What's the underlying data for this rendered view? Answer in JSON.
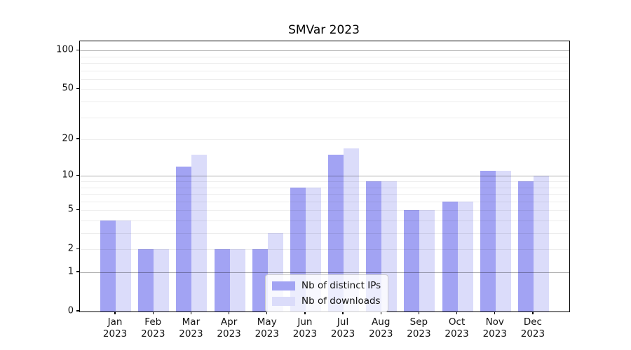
{
  "title": "SMVar 2023",
  "legend": {
    "items": [
      {
        "label": "Nb of distinct IPs",
        "color": "#a2a3f3"
      },
      {
        "label": "Nb of downloads",
        "color": "#dbdcfa"
      }
    ]
  },
  "chart_data": {
    "type": "bar",
    "title": "SMVar 2023",
    "categories": [
      "Jan 2023",
      "Feb 2023",
      "Mar 2023",
      "Apr 2023",
      "May 2023",
      "Jun 2023",
      "Jul 2023",
      "Aug 2023",
      "Sep 2023",
      "Oct 2023",
      "Nov 2023",
      "Dec 2023"
    ],
    "series": [
      {
        "name": "Nb of distinct IPs",
        "color": "#a2a3f3",
        "values": [
          4,
          2,
          12,
          2,
          2,
          8,
          15,
          9,
          5,
          6,
          11,
          9
        ]
      },
      {
        "name": "Nb of downloads",
        "color": "#dbdcfa",
        "values": [
          4,
          2,
          15,
          2,
          3,
          8,
          17,
          9,
          5,
          6,
          11,
          10
        ]
      }
    ],
    "xlabel": "",
    "ylabel": "",
    "yscale": "log1p",
    "ylim": [
      0,
      117
    ],
    "y_tick_values": [
      0,
      1,
      2,
      5,
      10,
      20,
      50,
      100
    ],
    "y_major_gridlines": [
      1,
      10,
      100
    ],
    "y_minor_gridlines": [
      2,
      3,
      4,
      5,
      6,
      7,
      8,
      9,
      20,
      30,
      40,
      50,
      60,
      70,
      80,
      90
    ],
    "grid": true,
    "grid_above_bars": true,
    "legend_position": "lower center",
    "colors": {
      "major_grid": "rgba(0,0,0,0.32)",
      "minor_grid": "rgba(0,0,0,0.07)",
      "axis": "#000000",
      "background": "#ffffff"
    }
  }
}
